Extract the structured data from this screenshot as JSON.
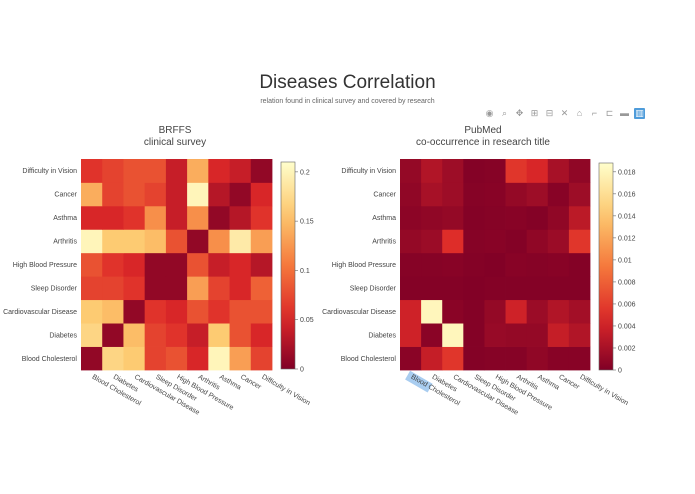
{
  "header": {
    "title": "Diseases Correlation",
    "subtitle": "relation found in clinical survey and covered by research"
  },
  "toolbar": {
    "icons": [
      "camera-icon",
      "zoom-icon",
      "pan-icon",
      "zoom-in-icon",
      "zoom-out-icon",
      "autoscale-icon",
      "home-icon",
      "hover-closest-icon",
      "hover-compare-icon",
      "toggle-spikelines-icon",
      "plotly-logo-icon"
    ]
  },
  "chart_data": [
    {
      "type": "heatmap",
      "title": "BRFFS",
      "subtitle": "clinical survey",
      "x": [
        "Blood Cholesterol",
        "Diabetes",
        "Cardiovascular Disease",
        "Sleep Disorder",
        "High Blood Pressure",
        "Arthritis",
        "Asthma",
        "Cancer",
        "Difficulty in Vision"
      ],
      "y": [
        "Blood Cholesterol",
        "Diabetes",
        "Cardiovascular Disease",
        "Sleep Disorder",
        "High Blood Pressure",
        "Arthritis",
        "Asthma",
        "Cancer",
        "Difficulty in Vision"
      ],
      "z": [
        [
          0.01,
          0.17,
          0.16,
          0.07,
          0.08,
          0.05,
          0.2,
          0.13,
          0.07
        ],
        [
          0.17,
          0.01,
          0.15,
          0.07,
          0.06,
          0.04,
          0.16,
          0.08,
          0.05
        ],
        [
          0.16,
          0.15,
          0.01,
          0.06,
          0.05,
          0.08,
          0.06,
          0.08,
          0.08
        ],
        [
          0.07,
          0.07,
          0.06,
          0.01,
          0.01,
          0.13,
          0.07,
          0.05,
          0.09
        ],
        [
          0.08,
          0.06,
          0.05,
          0.01,
          0.01,
          0.08,
          0.04,
          0.05,
          0.03
        ],
        [
          0.2,
          0.16,
          0.16,
          0.15,
          0.08,
          0.01,
          0.12,
          0.19,
          0.13
        ],
        [
          0.05,
          0.05,
          0.06,
          0.12,
          0.04,
          0.12,
          0.01,
          0.03,
          0.06
        ],
        [
          0.14,
          0.07,
          0.08,
          0.07,
          0.04,
          0.2,
          0.03,
          0.01,
          0.05
        ],
        [
          0.06,
          0.07,
          0.08,
          0.08,
          0.04,
          0.14,
          0.05,
          0.04,
          0.01
        ]
      ],
      "zmin": 0,
      "zmax": 0.21,
      "colorbar_ticks": [
        0,
        0.05,
        0.1,
        0.15,
        0.2
      ],
      "colorbar_labels": [
        "0",
        "0.05",
        "0.1",
        "0.15",
        "0.2"
      ],
      "colorscale": "YlOrRd reversed"
    },
    {
      "type": "heatmap",
      "title": "PubMed",
      "subtitle": "co-occurrence in research title",
      "x": [
        "Blood Cholesterol",
        "Diabetes",
        "Cardiovascular Disease",
        "Sleep Disorder",
        "High Blood Pressure",
        "Arthritis",
        "Asthma",
        "Cancer",
        "Difficulty in Vision"
      ],
      "y": [
        "Blood Cholesterol",
        "Diabetes",
        "Cardiovascular Disease",
        "Sleep Disorder",
        "High Blood Pressure",
        "Arthritis",
        "Asthma",
        "Cancer",
        "Difficulty in Vision"
      ],
      "z": [
        [
          0.0005,
          0.0035,
          0.0055,
          0.0002,
          0.0003,
          0.0003,
          0.0008,
          0.0004,
          0.0004
        ],
        [
          0.004,
          0.0005,
          0.018,
          0.0002,
          0.0012,
          0.001,
          0.001,
          0.0035,
          0.0025
        ],
        [
          0.004,
          0.018,
          0.0005,
          0.0002,
          0.001,
          0.004,
          0.0014,
          0.0025,
          0.0018
        ],
        [
          0.0002,
          0.0002,
          0.0002,
          0.0001,
          0.0002,
          0.0002,
          0.0002,
          0.0002,
          0.0002
        ],
        [
          0.0003,
          0.0003,
          0.0004,
          0.0002,
          0.0001,
          0.0004,
          0.0003,
          0.0004,
          0.0002
        ],
        [
          0.001,
          0.0014,
          0.005,
          0.0003,
          0.0004,
          0.0002,
          0.0008,
          0.0014,
          0.0055
        ],
        [
          0.0006,
          0.0008,
          0.001,
          0.0002,
          0.0003,
          0.0004,
          0.0002,
          0.0008,
          0.003
        ],
        [
          0.0008,
          0.002,
          0.0015,
          0.0003,
          0.0004,
          0.001,
          0.0015,
          0.0004,
          0.0015
        ],
        [
          0.001,
          0.0025,
          0.0015,
          0.0002,
          0.0003,
          0.0055,
          0.0045,
          0.002,
          0.0008
        ]
      ],
      "zmin": 0,
      "zmax": 0.0188,
      "colorbar_ticks": [
        0,
        0.002,
        0.004,
        0.006,
        0.008,
        0.01,
        0.012,
        0.014,
        0.016,
        0.018
      ],
      "colorbar_labels": [
        "0",
        "0.002",
        "0.004",
        "0.006",
        "0.008",
        "0.01",
        "0.012",
        "0.014",
        "0.016",
        "0.018"
      ],
      "colorscale": "YlOrRd reversed",
      "highlighted_tick": "Blood Cholesterol"
    }
  ]
}
